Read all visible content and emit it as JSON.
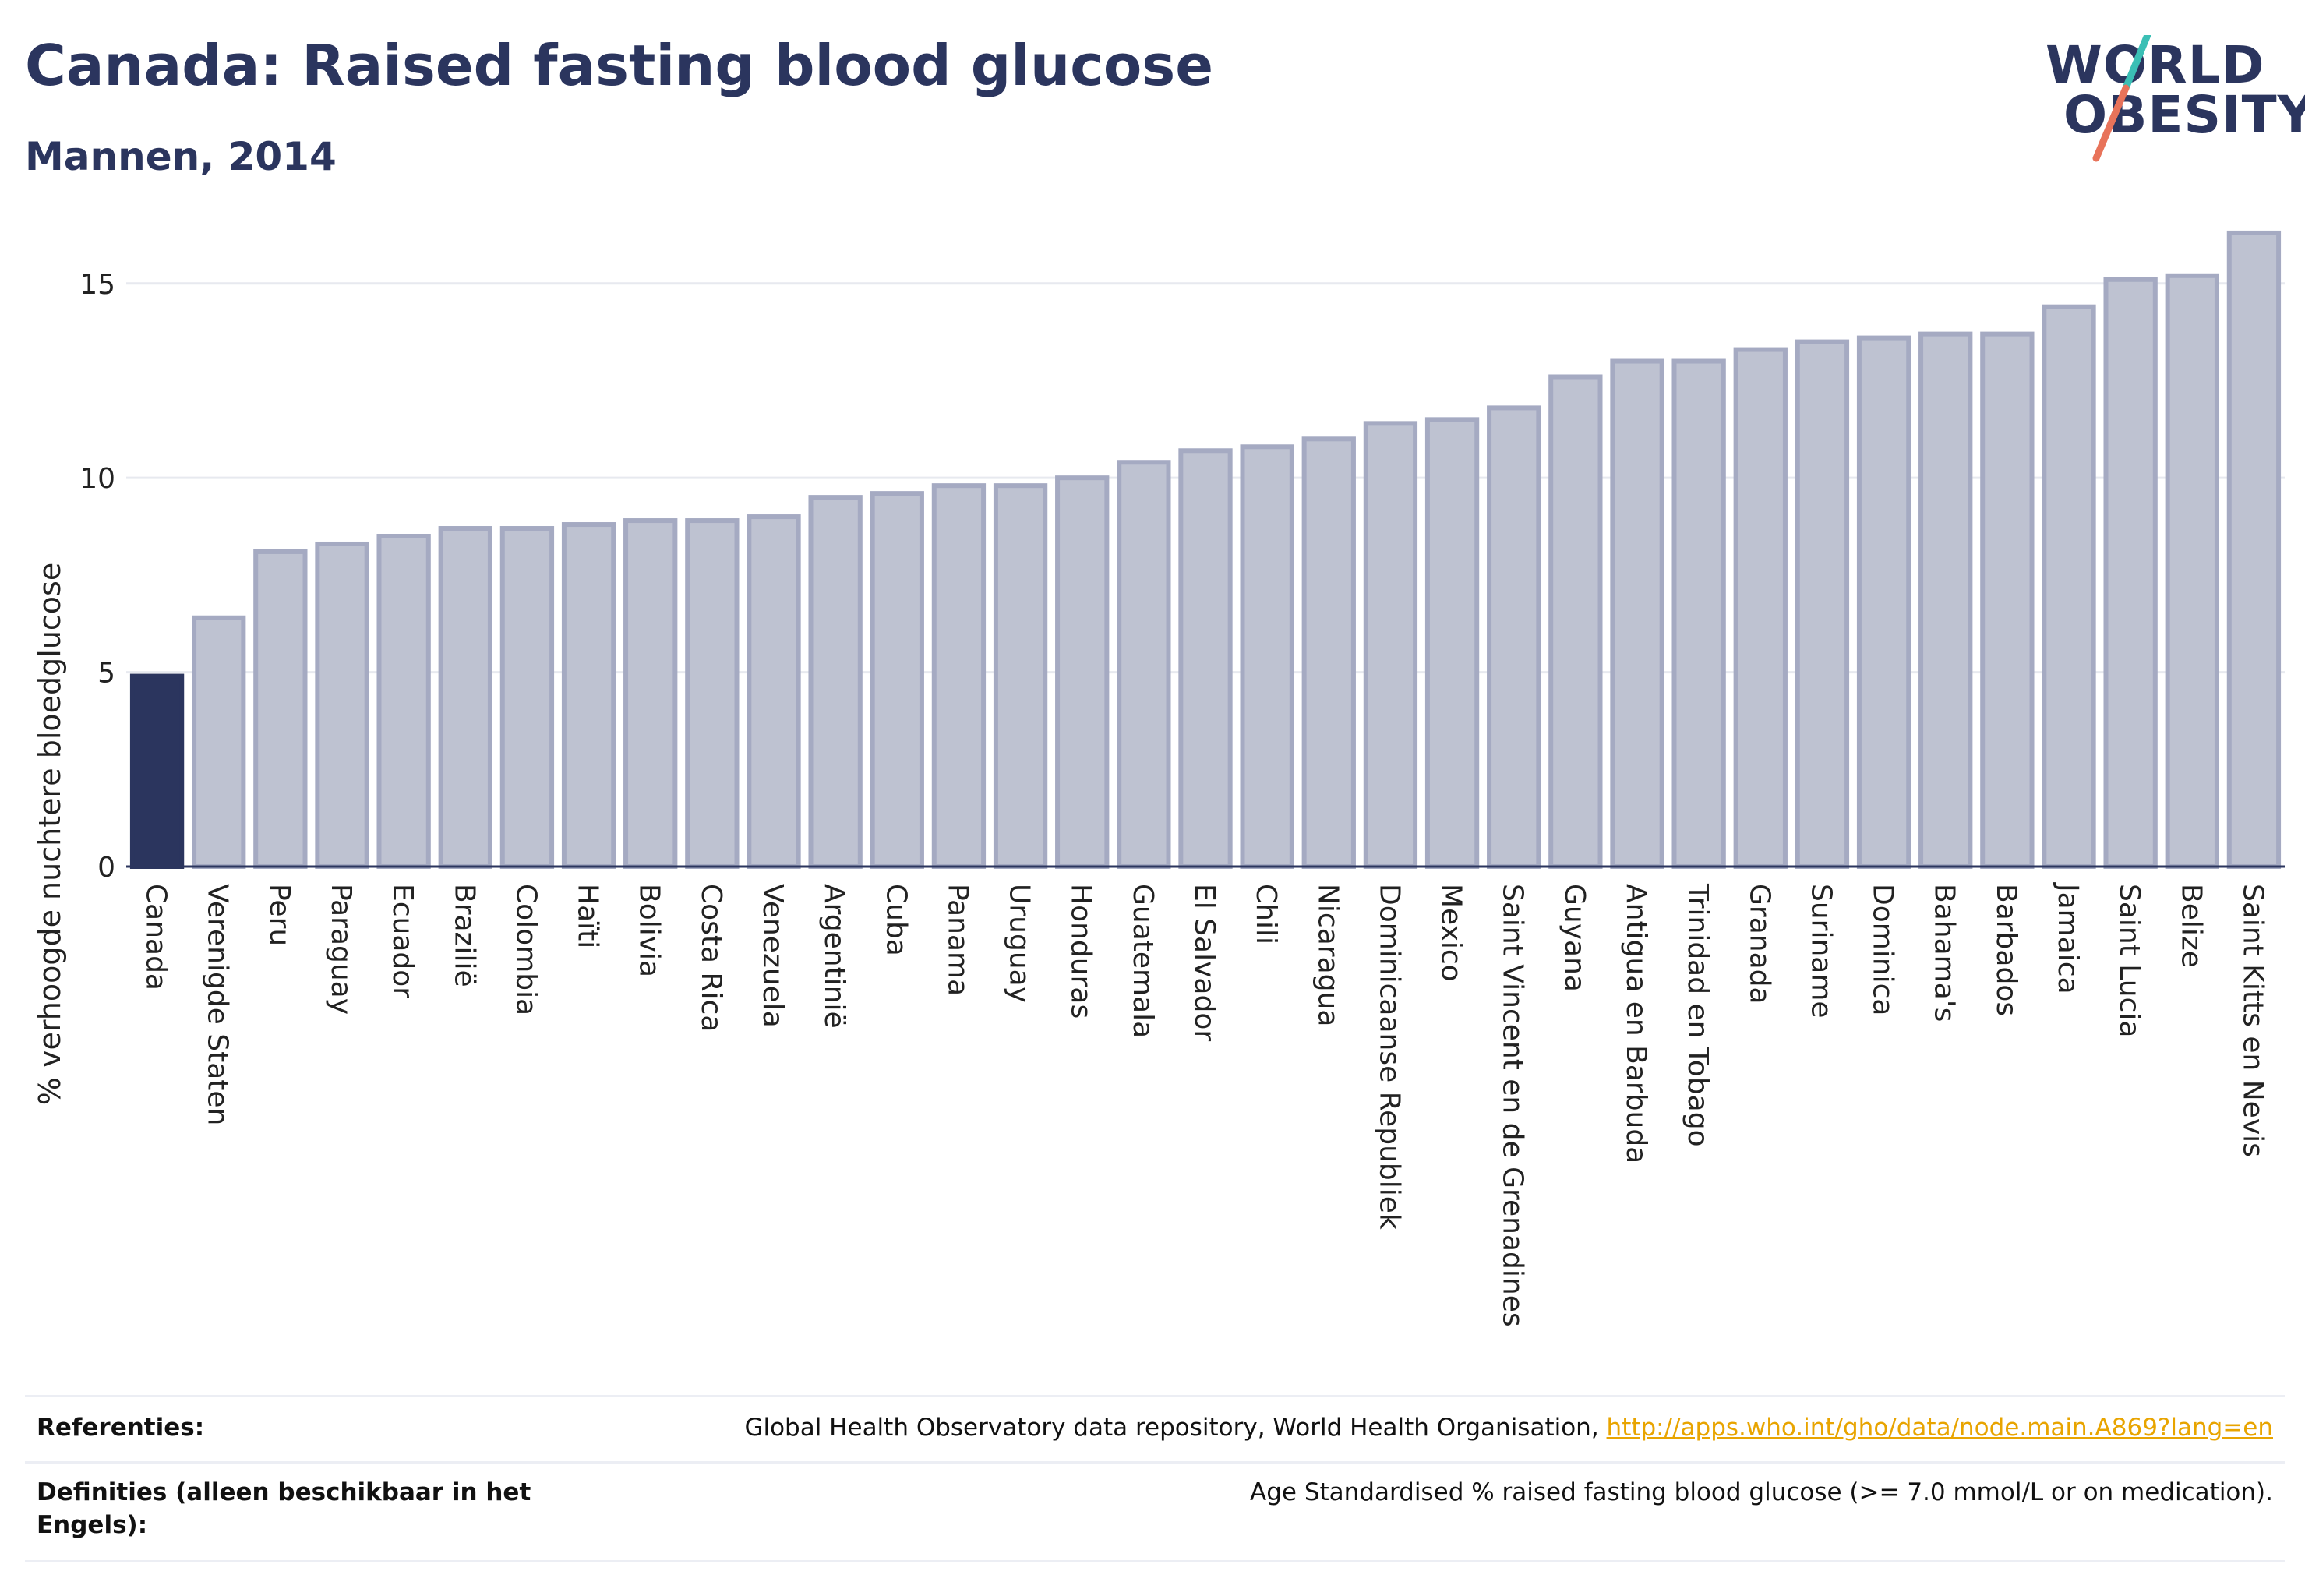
{
  "header": {
    "title": "Canada: Raised fasting blood glucose",
    "subtitle": "Mannen, 2014"
  },
  "logo": {
    "line1": "WORLD",
    "line2": "OBESITY",
    "slash_color_top": "#3bbfb5",
    "slash_color_bottom": "#e8735a"
  },
  "chart_data": {
    "type": "bar",
    "ylabel": "% verhoogde nuchtere bloedglucose",
    "xlabel": "",
    "ylim": [
      0,
      17
    ],
    "yticks": [
      0,
      5,
      10,
      15
    ],
    "grid": true,
    "highlight_category": "Canada",
    "highlight_color": "#2b355e",
    "bar_color": "#bec2d1",
    "bar_border_color": "#a5aac2",
    "categories": [
      "Canada",
      "Verenigde Staten",
      "Peru",
      "Paraguay",
      "Ecuador",
      "Brazilië",
      "Colombia",
      "Haïti",
      "Bolivia",
      "Costa Rica",
      "Venezuela",
      "Argentinië",
      "Cuba",
      "Panama",
      "Uruguay",
      "Honduras",
      "Guatemala",
      "El Salvador",
      "Chili",
      "Nicaragua",
      "Dominicaanse Republiek",
      "Mexico",
      "Saint Vincent en de Grenadines",
      "Guyana",
      "Antigua en Barbuda",
      "Trinidad en Tobago",
      "Granada",
      "Suriname",
      "Dominica",
      "Bahama's",
      "Barbados",
      "Jamaica",
      "Saint Lucia",
      "Belize",
      "Saint Kitts en Nevis"
    ],
    "values": [
      4.9,
      6.4,
      8.1,
      8.3,
      8.5,
      8.7,
      8.7,
      8.8,
      8.9,
      8.9,
      9.0,
      9.5,
      9.6,
      9.8,
      9.8,
      10.0,
      10.4,
      10.7,
      10.8,
      11.0,
      11.4,
      11.5,
      11.8,
      12.6,
      13.0,
      13.0,
      13.3,
      13.5,
      13.6,
      13.7,
      13.7,
      14.4,
      15.1,
      15.2,
      16.3
    ]
  },
  "references": {
    "ref_label": "Referenties:",
    "ref_text": "Global Health Observatory data repository, World Health Organisation, ",
    "ref_link": "http://apps.who.int/gho/data/node.main.A869?lang=en",
    "def_label": "Definities (alleen beschikbaar in het Engels):",
    "def_text": "Age Standardised % raised fasting blood glucose (>= 7.0 mmol/L or on medication)."
  }
}
